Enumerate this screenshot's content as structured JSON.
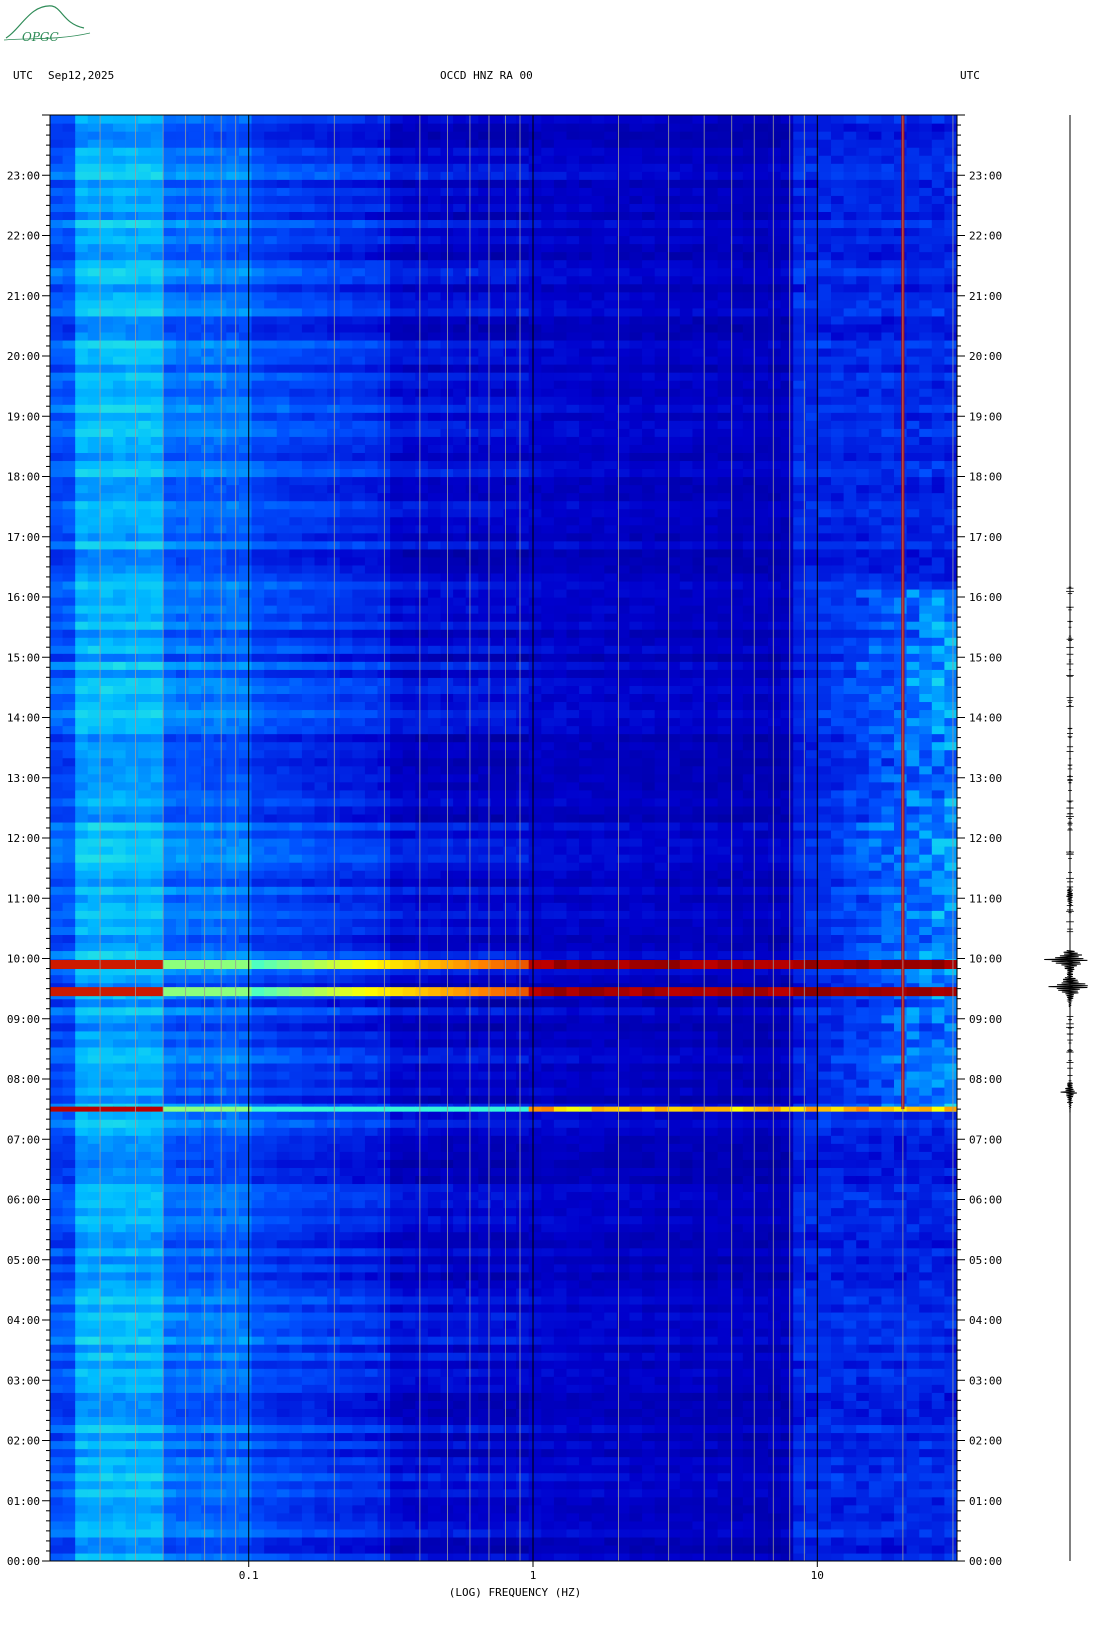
{
  "header": {
    "left_timezone": "UTC",
    "date": "Sep12,2025",
    "station": "OCCD HNZ RA 00",
    "right_timezone": "UTC"
  },
  "logo": {
    "text": "OPGC"
  },
  "chart_data": {
    "type": "heatmap",
    "title": "OCCD HNZ RA 00",
    "xlabel": "(LOG) FREQUENCY (HZ)",
    "ylabel": "",
    "x_scale": "log",
    "xlim": [
      0.02,
      31
    ],
    "x_ticks": [
      {
        "value": 0.1,
        "label": "0.1"
      },
      {
        "value": 1,
        "label": "1"
      },
      {
        "value": 10,
        "label": "10"
      }
    ],
    "y_unit": "hours UTC",
    "ylim": [
      0,
      24
    ],
    "y_ticks": [
      {
        "value": 23,
        "label": "23:00"
      },
      {
        "value": 22,
        "label": "22:00"
      },
      {
        "value": 21,
        "label": "21:00"
      },
      {
        "value": 20,
        "label": "20:00"
      },
      {
        "value": 19,
        "label": "19:00"
      },
      {
        "value": 18,
        "label": "18:00"
      },
      {
        "value": 17,
        "label": "17:00"
      },
      {
        "value": 16,
        "label": "16:00"
      },
      {
        "value": 15,
        "label": "15:00"
      },
      {
        "value": 14,
        "label": "14:00"
      },
      {
        "value": 13,
        "label": "13:00"
      },
      {
        "value": 12,
        "label": "12:00"
      },
      {
        "value": 11,
        "label": "11:00"
      },
      {
        "value": 10,
        "label": "10:00"
      },
      {
        "value": 9,
        "label": "09:00"
      },
      {
        "value": 8,
        "label": "08:00"
      },
      {
        "value": 7,
        "label": "07:00"
      },
      {
        "value": 6,
        "label": "06:00"
      },
      {
        "value": 5,
        "label": "05:00"
      },
      {
        "value": 4,
        "label": "04:00"
      },
      {
        "value": 3,
        "label": "03:00"
      },
      {
        "value": 2,
        "label": "02:00"
      },
      {
        "value": 1,
        "label": "01:00"
      },
      {
        "value": 0,
        "label": "00:00"
      }
    ],
    "grid": true,
    "colormap": [
      "#000080",
      "#0000cd",
      "#0050ff",
      "#00bfff",
      "#40ffd0",
      "#ffff00",
      "#ff8000",
      "#c00000",
      "#800000"
    ],
    "events": [
      {
        "time": 7.5,
        "fmin": 0.02,
        "fmax": 30,
        "level": "high"
      },
      {
        "time": 9.45,
        "fmin": 0.02,
        "fmax": 30,
        "level": "very-high"
      },
      {
        "time": 9.9,
        "fmin": 0.02,
        "fmax": 30,
        "level": "very-high"
      }
    ],
    "persistent_line_hz": 20,
    "high_noise_band_hz": [
      8,
      31
    ],
    "high_noise_hours": [
      7.5,
      16.2
    ]
  },
  "seismogram": {
    "bursts": [
      {
        "time": 9.9,
        "amplitude": "large"
      },
      {
        "time": 9.45,
        "amplitude": "large"
      },
      {
        "time": 7.7,
        "amplitude": "medium"
      },
      {
        "time": 10.95,
        "amplitude": "small"
      }
    ]
  },
  "colors": {
    "background": "#ffffff",
    "axis": "#000000",
    "logo": "#2e8b57"
  }
}
